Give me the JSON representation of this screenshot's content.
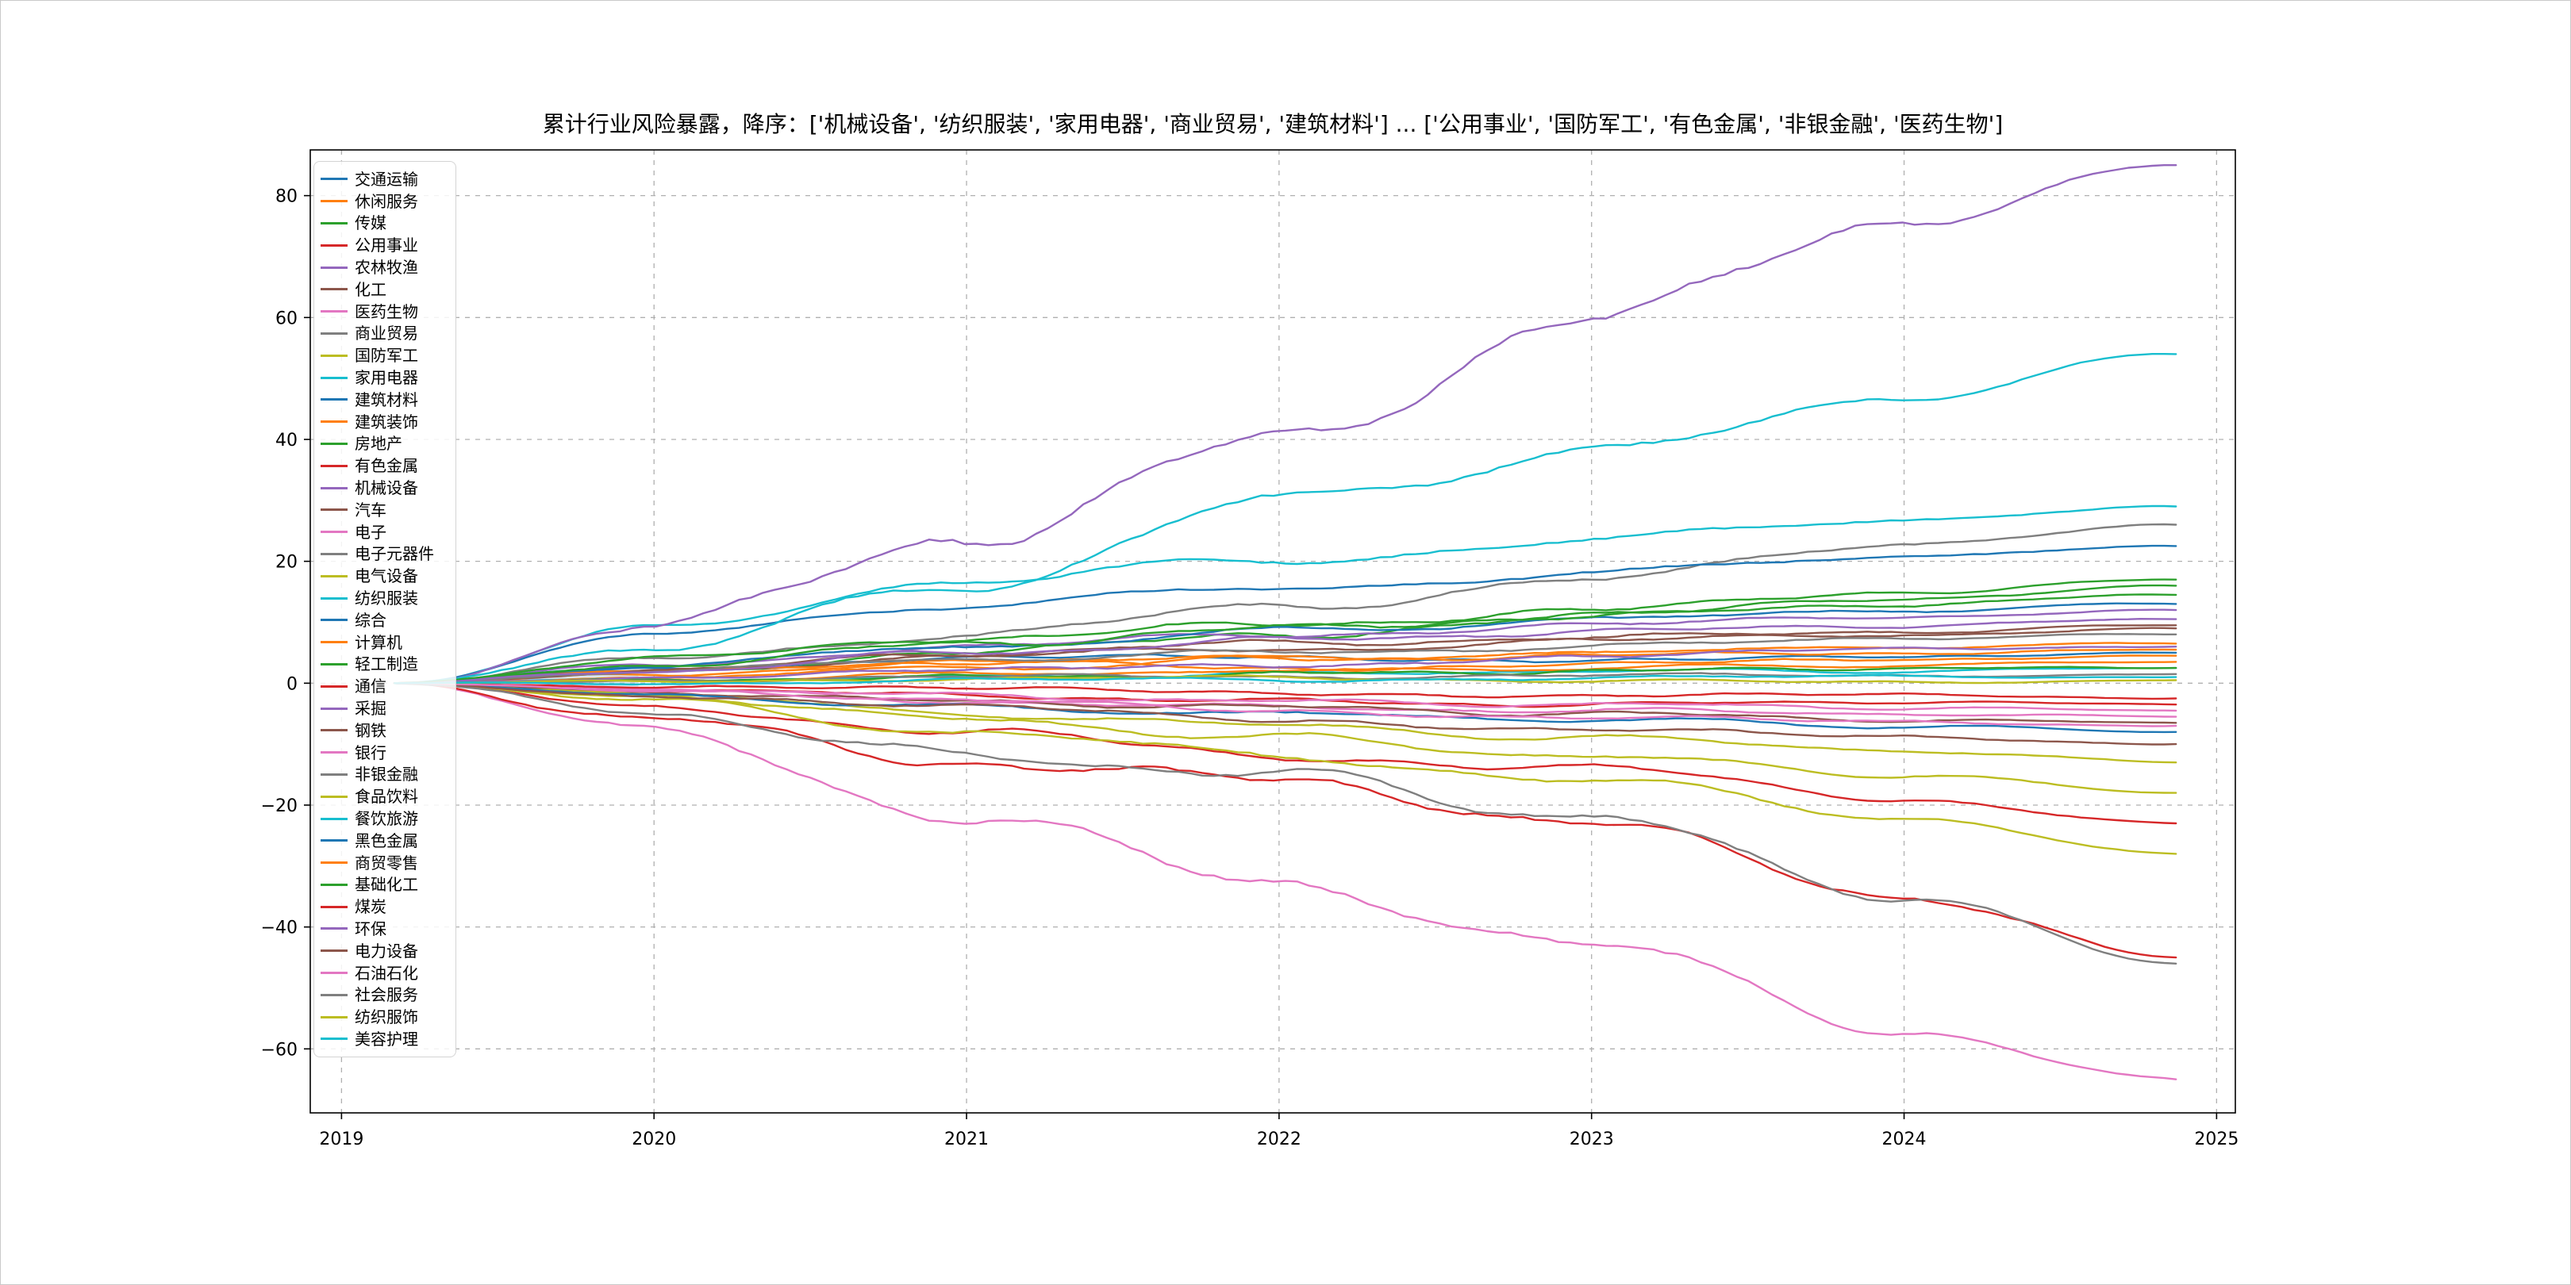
{
  "title": "累计行业风险暴露，降序：['机械设备', '纺织服装', '家用电器', '商业贸易', '建筑材料'] ... ['公用事业', '国防军工', '有色金属', '非银金融', '医药生物']",
  "chart_data": {
    "type": "line",
    "title": "累计行业风险暴露，降序：['机械设备', '纺织服装', '家用电器', '商业贸易', '建筑材料'] ... ['公用事业', '国防军工', '有色金属', '非银金融', '医药生物']",
    "xlabel": "",
    "ylabel": "",
    "grid": true,
    "grid_style": "dashed",
    "grid_color": "#b0b0b0",
    "legend_position": "upper left",
    "x_range": [
      2018.9,
      2025.06
    ],
    "y_range": [
      -70.5,
      87.5
    ],
    "x_tick_values": [
      2019,
      2020,
      2021,
      2022,
      2023,
      2024,
      2025
    ],
    "x_tick_labels": [
      "2019",
      "2020",
      "2021",
      "2022",
      "2023",
      "2024",
      "2025"
    ],
    "y_tick_values": [
      80,
      60,
      40,
      20,
      0,
      -20,
      -40,
      -60
    ],
    "y_tick_labels": [
      "80",
      "60",
      "40",
      "20",
      "0",
      "−20",
      "−40",
      "−60"
    ],
    "x": [
      2019.17,
      2020,
      2021,
      2022,
      2023,
      2024,
      2024.87
    ],
    "origin_band": {
      "color": "#adc8dc",
      "opacity": 0.45,
      "x_end": 2019.95,
      "y_top": 2.2,
      "y_bottom": -1.8
    },
    "series": [
      {
        "name": "交通运输",
        "color": "#1f77b4",
        "values": [
          0,
          2.5,
          4,
          4.5,
          3.5,
          4.5,
          5
        ]
      },
      {
        "name": "休闲服务",
        "color": "#ff7f0e",
        "values": [
          0,
          1.5,
          3.5,
          2.5,
          3,
          4,
          4.5
        ]
      },
      {
        "name": "传媒",
        "color": "#2ca02c",
        "values": [
          0,
          2,
          5,
          8,
          11,
          14,
          16
        ]
      },
      {
        "name": "公用事业",
        "color": "#d62728",
        "values": [
          0,
          -4,
          -8,
          -12,
          -14,
          -19,
          -23
        ]
      },
      {
        "name": "农林牧渔",
        "color": "#9467bd",
        "values": [
          0,
          3,
          6,
          8,
          9.5,
          11,
          12
        ]
      },
      {
        "name": "化工",
        "color": "#8c564b",
        "values": [
          0,
          2,
          4.5,
          5.5,
          7,
          8,
          9
        ]
      },
      {
        "name": "医药生物",
        "color": "#e377c2",
        "values": [
          0,
          -8,
          -22,
          -33,
          -43,
          -57,
          -65
        ]
      },
      {
        "name": "商业贸易",
        "color": "#7f7f7f",
        "values": [
          0,
          4,
          8,
          12.5,
          17,
          23,
          26
        ]
      },
      {
        "name": "国防军工",
        "color": "#bcbd22",
        "values": [
          0,
          -3,
          -8,
          -12,
          -16,
          -22,
          -28
        ]
      },
      {
        "name": "家用电器",
        "color": "#17becf",
        "values": [
          0,
          9,
          17,
          20,
          23.5,
          27,
          29
        ]
      },
      {
        "name": "建筑材料",
        "color": "#1f77b4",
        "values": [
          0,
          8,
          13,
          15.5,
          18,
          21,
          22.5
        ]
      },
      {
        "name": "建筑装饰",
        "color": "#ff7f0e",
        "values": [
          0,
          2,
          3.5,
          4,
          4.5,
          5,
          5.5
        ]
      },
      {
        "name": "房地产",
        "color": "#2ca02c",
        "values": [
          0,
          4,
          7.5,
          9.5,
          12,
          15,
          17
        ]
      },
      {
        "name": "有色金属",
        "color": "#d62728",
        "values": [
          0,
          -6,
          -13,
          -16,
          -23,
          -35,
          -45
        ]
      },
      {
        "name": "机械设备",
        "color": "#9467bd",
        "values": [
          0,
          9.5,
          24,
          40,
          60,
          76,
          85
        ]
      },
      {
        "name": "汽车",
        "color": "#8c564b",
        "values": [
          0,
          2,
          5,
          6.5,
          7.5,
          8.5,
          9.5
        ]
      },
      {
        "name": "电子",
        "color": "#e377c2",
        "values": [
          0,
          -1,
          -3,
          -4,
          -4.5,
          -5,
          -5.5
        ]
      },
      {
        "name": "电子元器件",
        "color": "#7f7f7f",
        "values": [
          0,
          2,
          4,
          5,
          6,
          7.5,
          8
        ]
      },
      {
        "name": "电气设备",
        "color": "#bcbd22",
        "values": [
          0,
          -2,
          -5,
          -7,
          -9,
          -11,
          -13
        ]
      },
      {
        "name": "纺织服装",
        "color": "#17becf",
        "values": [
          0,
          6,
          16,
          30,
          38,
          47,
          54
        ]
      },
      {
        "name": "综合",
        "color": "#1f77b4",
        "values": [
          0,
          3,
          6,
          8.5,
          10.5,
          12,
          13
        ]
      },
      {
        "name": "计算机",
        "color": "#ff7f0e",
        "values": [
          0,
          1,
          2.5,
          4,
          5,
          6,
          6.5
        ]
      },
      {
        "name": "轻工制造",
        "color": "#2ca02c",
        "values": [
          0,
          3,
          6.5,
          9,
          11,
          13,
          14.5
        ]
      },
      {
        "name": "通信",
        "color": "#d62728",
        "values": [
          0,
          -1,
          -2,
          -3,
          -3.5,
          -3,
          -3.5
        ]
      },
      {
        "name": "采掘",
        "color": "#9467bd",
        "values": [
          0,
          2,
          5,
          7,
          8.5,
          9.5,
          10.5
        ]
      },
      {
        "name": "钢铁",
        "color": "#8c564b",
        "values": [
          0,
          -1.5,
          -3,
          -4,
          -5,
          -6,
          -6.5
        ]
      },
      {
        "name": "银行",
        "color": "#e377c2",
        "values": [
          0,
          -1,
          -2,
          -3,
          -3.5,
          -4,
          -4.5
        ]
      },
      {
        "name": "非银金融",
        "color": "#7f7f7f",
        "values": [
          0,
          -5,
          -12,
          -15,
          -22,
          -35,
          -46
        ]
      },
      {
        "name": "食品饮料",
        "color": "#bcbd22",
        "values": [
          0,
          -2,
          -6,
          -9,
          -12,
          -15,
          -18
        ]
      },
      {
        "name": "餐饮旅游",
        "color": "#17becf",
        "values": [
          0,
          0.5,
          1,
          1.5,
          2,
          2,
          2.5
        ]
      },
      {
        "name": "黑色金属",
        "color": "#1f77b4",
        "values": [
          0,
          -2,
          -4,
          -5,
          -6,
          -7,
          -8
        ]
      },
      {
        "name": "商贸零售",
        "color": "#ff7f0e",
        "values": [
          0,
          0.5,
          1.5,
          2,
          2.5,
          3,
          3.5
        ]
      },
      {
        "name": "基础化工",
        "color": "#2ca02c",
        "values": [
          0,
          0.5,
          1,
          1.5,
          2,
          2.5,
          2.5
        ]
      },
      {
        "name": "煤炭",
        "color": "#d62728",
        "values": [
          0,
          -0.5,
          -1,
          -1.5,
          -2,
          -2,
          -2.5
        ]
      },
      {
        "name": "环保",
        "color": "#9467bd",
        "values": [
          0,
          1,
          2,
          3,
          4.5,
          5.5,
          6
        ]
      },
      {
        "name": "电力设备",
        "color": "#8c564b",
        "values": [
          0,
          -2,
          -4,
          -6,
          -7.5,
          -9,
          -10
        ]
      },
      {
        "name": "石油石化",
        "color": "#e377c2",
        "values": [
          0,
          -1,
          -3,
          -4.5,
          -5.5,
          -6.5,
          -7
        ]
      },
      {
        "name": "社会服务",
        "color": "#7f7f7f",
        "values": [
          0,
          0.5,
          1,
          1,
          1.5,
          1,
          1.5
        ]
      },
      {
        "name": "纺织服饰",
        "color": "#bcbd22",
        "values": [
          0,
          0.5,
          0.5,
          1,
          0.5,
          0,
          0.5
        ]
      },
      {
        "name": "美容护理",
        "color": "#17becf",
        "values": [
          0,
          0,
          0.5,
          0.5,
          1,
          1,
          1
        ]
      }
    ]
  }
}
